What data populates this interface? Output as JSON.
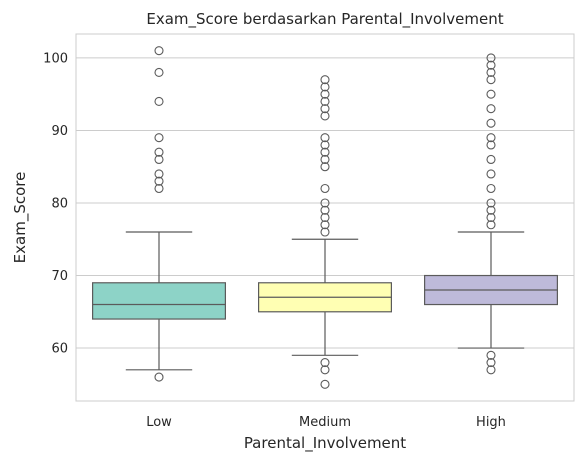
{
  "chart_data": {
    "type": "box",
    "title": "Exam_Score berdasarkan Parental_Involvement",
    "xlabel": "Parental_Involvement",
    "ylabel": "Exam_Score",
    "ylim": [
      52.7,
      103.3
    ],
    "yticks": [
      60,
      70,
      80,
      90,
      100
    ],
    "grid": "horizontal",
    "categories": [
      "Low",
      "Medium",
      "High"
    ],
    "colors": [
      "#8dd3c7",
      "#ffffb3",
      "#bebada"
    ],
    "edge_color": "#5b5b5b",
    "grid_color": "#cccccc",
    "boxes": [
      {
        "category": "Low",
        "whisker_low": 57,
        "q1": 64,
        "median": 66,
        "q3": 69,
        "whisker_high": 76,
        "outliers": [
          56,
          82,
          83,
          84,
          86,
          87,
          89,
          94,
          98,
          101
        ]
      },
      {
        "category": "Medium",
        "whisker_low": 59,
        "q1": 65,
        "median": 67,
        "q3": 69,
        "whisker_high": 75,
        "outliers": [
          55,
          57,
          58,
          76,
          77,
          78,
          79,
          80,
          82,
          85,
          86,
          87,
          88,
          89,
          92,
          93,
          94,
          95,
          96,
          97
        ]
      },
      {
        "category": "High",
        "whisker_low": 60,
        "q1": 66,
        "median": 68,
        "q3": 70,
        "whisker_high": 76,
        "outliers": [
          57,
          58,
          59,
          77,
          78,
          79,
          80,
          82,
          84,
          86,
          88,
          89,
          91,
          93,
          95,
          97,
          98,
          99,
          100
        ]
      }
    ]
  }
}
